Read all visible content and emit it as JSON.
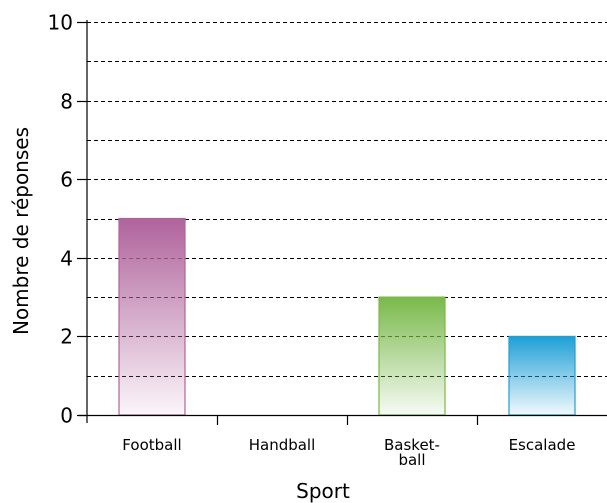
{
  "chart_data": {
    "type": "bar",
    "title": "",
    "xlabel": "Sport",
    "ylabel": "Nombre de réponses",
    "categories": [
      {
        "lines": [
          "Football"
        ]
      },
      {
        "lines": [
          "Handball"
        ]
      },
      {
        "lines": [
          "Basket-",
          "ball"
        ]
      },
      {
        "lines": [
          "Escalade"
        ]
      }
    ],
    "values": [
      5,
      0,
      3,
      2
    ],
    "colors": [
      "#b0639c",
      "#b0639c",
      "#79b94a",
      "#1e9fd6"
    ],
    "ylim": [
      0,
      10
    ],
    "major_ticks": [
      0,
      2,
      4,
      6,
      8,
      10
    ],
    "grid": true,
    "grid_step": 1,
    "legend": "none"
  }
}
